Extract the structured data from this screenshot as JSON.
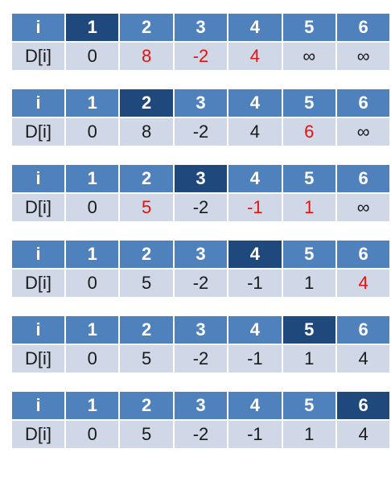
{
  "colors": {
    "header": "#4f81bd",
    "header_current": "#1f497d",
    "row": "#d0d8e8",
    "text": "#1a1a1a",
    "changed": "#e8120c"
  },
  "header_label": "i",
  "value_label": "D[i]",
  "indices": [
    "1",
    "2",
    "3",
    "4",
    "5",
    "6"
  ],
  "steps": [
    {
      "current": 1,
      "values": [
        "0",
        "8",
        "-2",
        "4",
        "∞",
        "∞"
      ],
      "changed": [
        2,
        3,
        4
      ]
    },
    {
      "current": 2,
      "values": [
        "0",
        "8",
        "-2",
        "4",
        "6",
        "∞"
      ],
      "changed": [
        5
      ]
    },
    {
      "current": 3,
      "values": [
        "0",
        "5",
        "-2",
        "-1",
        "1",
        "∞"
      ],
      "changed": [
        2,
        4,
        5
      ]
    },
    {
      "current": 4,
      "values": [
        "0",
        "5",
        "-2",
        "-1",
        "1",
        "4"
      ],
      "changed": [
        6
      ]
    },
    {
      "current": 5,
      "values": [
        "0",
        "5",
        "-2",
        "-1",
        "1",
        "4"
      ],
      "changed": []
    },
    {
      "current": 6,
      "values": [
        "0",
        "5",
        "-2",
        "-1",
        "1",
        "4"
      ],
      "changed": []
    }
  ]
}
